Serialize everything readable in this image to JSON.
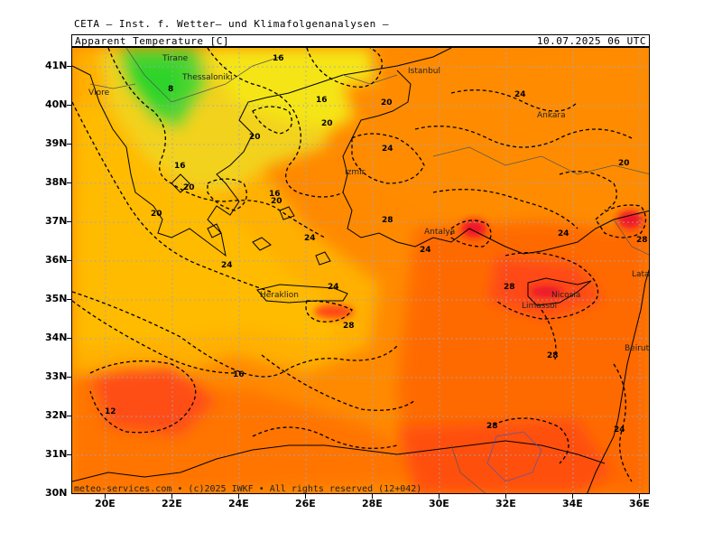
{
  "header": {
    "source_line": "CETA — Inst. f. Wetter— und Klimafolgenanalysen —",
    "title": "Apparent Temperature [C]",
    "valid_time": "10.07.2025  06 UTC"
  },
  "copyright": "meteo-services.com • (c)2025 IWKF • All rights reserved (12+042)",
  "lat_labels": [
    "41N",
    "40N",
    "39N",
    "38N",
    "37N",
    "36N",
    "35N",
    "34N",
    "33N",
    "32N",
    "31N",
    "30N"
  ],
  "lon_labels": [
    "20E",
    "22E",
    "24E",
    "26E",
    "28E",
    "30E",
    "32E",
    "34E",
    "36E"
  ],
  "cities": [
    "Thessaloniki",
    "Istanbul",
    "Ankara",
    "Izmir",
    "Antalya",
    "Heraklion",
    "Nicosia",
    "Limassol",
    "Latakia",
    "Beirut",
    "Tirane",
    "Vlore"
  ],
  "contour_labels": [
    "16",
    "16",
    "16",
    "16",
    "20",
    "20",
    "20",
    "20",
    "20",
    "20",
    "20",
    "24",
    "24",
    "24",
    "24",
    "24",
    "24",
    "24",
    "24",
    "28",
    "28",
    "28",
    "28",
    "28",
    "28",
    "12",
    "8",
    "16"
  ],
  "colors": {
    "green": "#3fd23a",
    "yellow": "#f3e21a",
    "light_orange": "#ffb800",
    "orange": "#ff9a00",
    "dark_orange": "#ff6a00",
    "red_orange": "#ff4d14",
    "red": "#f0142a"
  }
}
